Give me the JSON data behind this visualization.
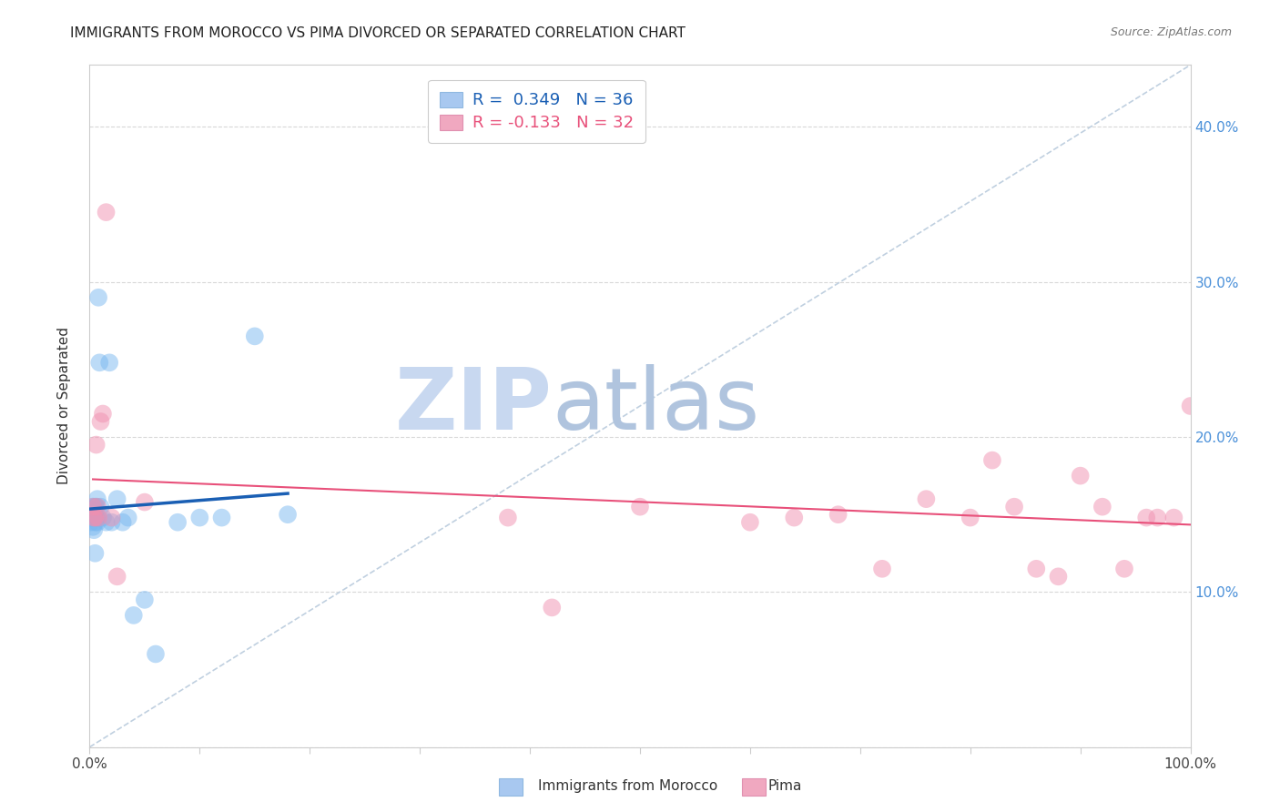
{
  "title": "IMMIGRANTS FROM MOROCCO VS PIMA DIVORCED OR SEPARATED CORRELATION CHART",
  "source": "Source: ZipAtlas.com",
  "ylabel": "Divorced or Separated",
  "xlim": [
    0.0,
    1.0
  ],
  "ylim": [
    0.0,
    0.44
  ],
  "yticks": [
    0.0,
    0.1,
    0.2,
    0.3,
    0.4
  ],
  "ytick_labels": [
    "",
    "10.0%",
    "20.0%",
    "30.0%",
    "40.0%"
  ],
  "xticks": [
    0.0,
    0.1,
    0.2,
    0.3,
    0.4,
    0.5,
    0.6,
    0.7,
    0.8,
    0.9,
    1.0
  ],
  "legend_labels_blue": "R =  0.349   N = 36",
  "legend_labels_pink": "R = -0.133   N = 32",
  "legend_color_blue": "#a8c8f0",
  "legend_color_pink": "#f0a8c0",
  "scatter_blue_color": "#7ab8f0",
  "scatter_pink_color": "#f090b0",
  "trendline_blue_color": "#1a5fb4",
  "trendline_pink_color": "#e8507a",
  "diagonal_color": "#c0d0e0",
  "watermark_zip": "#c8d8f0",
  "watermark_atlas": "#b0c4e0",
  "blue_x": [
    0.001,
    0.002,
    0.002,
    0.003,
    0.003,
    0.003,
    0.004,
    0.004,
    0.004,
    0.005,
    0.005,
    0.005,
    0.005,
    0.006,
    0.006,
    0.007,
    0.007,
    0.007,
    0.008,
    0.009,
    0.01,
    0.012,
    0.015,
    0.018,
    0.02,
    0.025,
    0.03,
    0.035,
    0.04,
    0.05,
    0.06,
    0.08,
    0.1,
    0.12,
    0.15,
    0.18
  ],
  "blue_y": [
    0.145,
    0.148,
    0.15,
    0.142,
    0.148,
    0.155,
    0.14,
    0.148,
    0.153,
    0.145,
    0.148,
    0.155,
    0.125,
    0.148,
    0.155,
    0.145,
    0.148,
    0.16,
    0.29,
    0.248,
    0.155,
    0.148,
    0.145,
    0.248,
    0.145,
    0.16,
    0.145,
    0.148,
    0.085,
    0.095,
    0.06,
    0.145,
    0.148,
    0.148,
    0.265,
    0.15
  ],
  "pink_x": [
    0.003,
    0.004,
    0.005,
    0.006,
    0.007,
    0.008,
    0.01,
    0.012,
    0.015,
    0.02,
    0.025,
    0.05,
    0.38,
    0.42,
    0.5,
    0.6,
    0.64,
    0.68,
    0.72,
    0.76,
    0.8,
    0.82,
    0.84,
    0.86,
    0.88,
    0.9,
    0.92,
    0.94,
    0.96,
    0.97,
    0.985,
    1.0
  ],
  "pink_y": [
    0.155,
    0.148,
    0.148,
    0.195,
    0.155,
    0.148,
    0.21,
    0.215,
    0.345,
    0.148,
    0.11,
    0.158,
    0.148,
    0.09,
    0.155,
    0.145,
    0.148,
    0.15,
    0.115,
    0.16,
    0.148,
    0.185,
    0.155,
    0.115,
    0.11,
    0.175,
    0.155,
    0.115,
    0.148,
    0.148,
    0.148,
    0.22
  ],
  "blue_trendline_x": [
    0.001,
    0.18
  ],
  "pink_trendline_x": [
    0.003,
    1.0
  ]
}
